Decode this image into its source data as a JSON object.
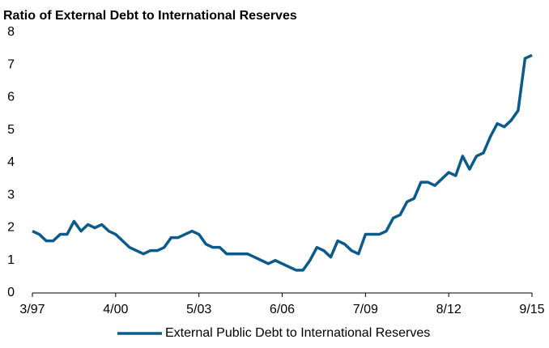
{
  "chart_data": {
    "type": "line",
    "title": "Ratio of External Debt to International Reserves",
    "categories": [
      "3/97",
      null,
      null,
      null,
      null,
      null,
      null,
      null,
      null,
      null,
      null,
      null,
      "4/00",
      null,
      null,
      null,
      null,
      null,
      null,
      null,
      null,
      null,
      null,
      null,
      "5/03",
      null,
      null,
      null,
      null,
      null,
      null,
      null,
      null,
      null,
      null,
      null,
      "6/06",
      null,
      null,
      null,
      null,
      null,
      null,
      null,
      null,
      null,
      null,
      null,
      "7/09",
      null,
      null,
      null,
      null,
      null,
      null,
      null,
      null,
      null,
      null,
      null,
      "8/12",
      null,
      null,
      null,
      null,
      null,
      null,
      null,
      null,
      null,
      null,
      null,
      "9/15"
    ],
    "series": [
      {
        "name": "External Public Debt to International Reserves",
        "color": "#0b5a8c",
        "values": [
          1.9,
          1.8,
          1.6,
          1.6,
          1.8,
          1.8,
          2.2,
          1.9,
          2.1,
          2.0,
          2.1,
          1.9,
          1.8,
          1.6,
          1.4,
          1.3,
          1.2,
          1.3,
          1.3,
          1.4,
          1.7,
          1.7,
          1.8,
          1.9,
          1.8,
          1.5,
          1.4,
          1.4,
          1.2,
          1.2,
          1.2,
          1.2,
          1.1,
          1.0,
          0.9,
          1.0,
          0.9,
          0.8,
          0.7,
          0.7,
          1.0,
          1.4,
          1.3,
          1.1,
          1.6,
          1.5,
          1.3,
          1.2,
          1.8,
          1.8,
          1.8,
          1.9,
          2.3,
          2.4,
          2.8,
          2.9,
          3.4,
          3.4,
          3.3,
          3.5,
          3.7,
          3.6,
          4.2,
          3.8,
          4.2,
          4.3,
          4.8,
          5.2,
          5.1,
          5.3,
          5.6,
          7.2,
          7.3
        ]
      }
    ],
    "ylim": [
      0,
      8
    ],
    "yticks": [
      0,
      1,
      2,
      3,
      4,
      5,
      6,
      7,
      8
    ],
    "grid": false,
    "legend": "bottom"
  }
}
